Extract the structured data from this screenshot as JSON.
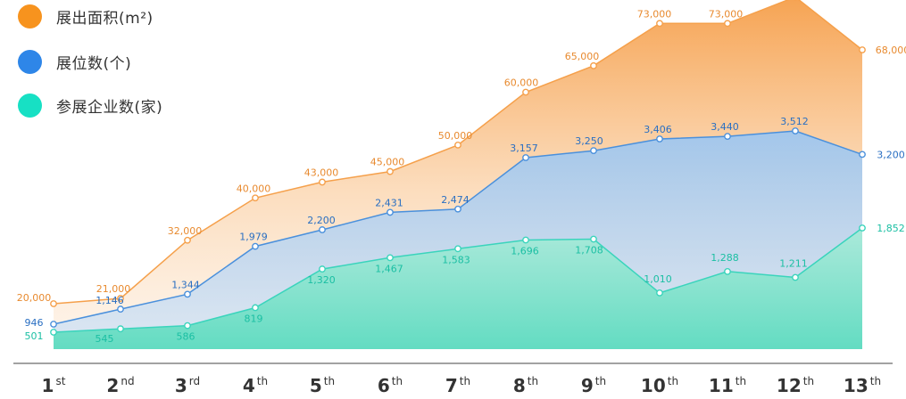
{
  "chart_data": {
    "type": "area",
    "categories": [
      {
        "num": "1",
        "sup": "st"
      },
      {
        "num": "2",
        "sup": "nd"
      },
      {
        "num": "3",
        "sup": "rd"
      },
      {
        "num": "4",
        "sup": "th"
      },
      {
        "num": "5",
        "sup": "th"
      },
      {
        "num": "6",
        "sup": "th"
      },
      {
        "num": "7",
        "sup": "th"
      },
      {
        "num": "8",
        "sup": "th"
      },
      {
        "num": "9",
        "sup": "th"
      },
      {
        "num": "10",
        "sup": "th"
      },
      {
        "num": "11",
        "sup": "th"
      },
      {
        "num": "12",
        "sup": "th"
      },
      {
        "num": "13",
        "sup": "th"
      }
    ],
    "series": [
      {
        "name": "展出面积(m²)",
        "color": "#f5a04b",
        "values": [
          20000,
          21000,
          32000,
          40000,
          43000,
          45000,
          50000,
          60000,
          65000,
          73000,
          73000,
          78000,
          68000
        ],
        "labels": [
          "20,000",
          "21,000",
          "32,000",
          "40,000",
          "43,000",
          "45,000",
          "50,000",
          "60,000",
          "65,000",
          "73,000",
          "73,000",
          "",
          "68,000"
        ]
      },
      {
        "name": "展位数(个)",
        "color": "#3d8ee0",
        "values": [
          946,
          1146,
          1344,
          1979,
          2200,
          2431,
          2474,
          3157,
          3250,
          3406,
          3440,
          3512,
          3200
        ],
        "labels": [
          "946",
          "1,146",
          "1,344",
          "1,979",
          "2,200",
          "2,431",
          "2,474",
          "3,157",
          "3,250",
          "3,406",
          "3,440",
          "3,512",
          "3,200"
        ]
      },
      {
        "name": "参展企业数(家)",
        "color": "#3ad4bc",
        "values": [
          501,
          545,
          586,
          819,
          1320,
          1467,
          1583,
          1696,
          1708,
          1010,
          1288,
          1211,
          1852
        ],
        "labels": [
          "501",
          "545",
          "586",
          "819",
          "1,320",
          "1,467",
          "1,583",
          "1,696",
          "1,708",
          "1,010",
          "1,288",
          "1,211",
          "1,852"
        ]
      }
    ],
    "legend_position": "top-left",
    "grid": false
  }
}
